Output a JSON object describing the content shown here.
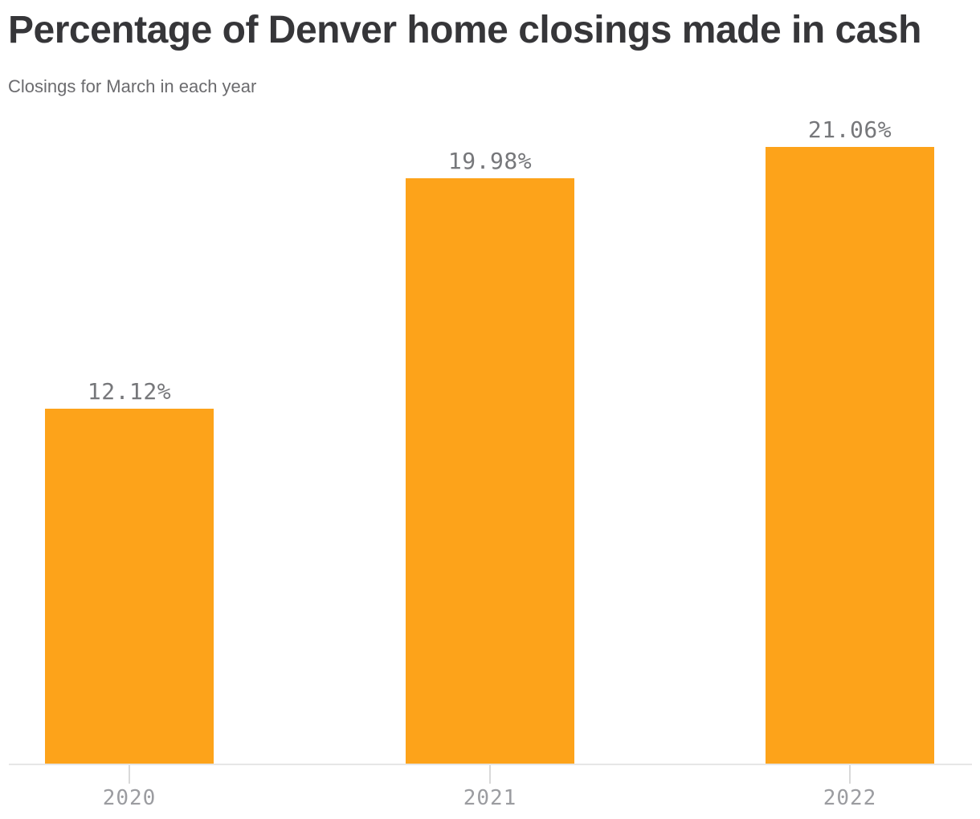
{
  "header": {
    "title": "Percentage of Denver home closings made in cash",
    "subtitle": "Closings for March in each year"
  },
  "chart_data": {
    "type": "bar",
    "title": "Percentage of Denver home closings made in cash",
    "subtitle": "Closings for March in each year",
    "categories": [
      "2020",
      "2021",
      "2022"
    ],
    "values": [
      12.12,
      19.98,
      21.06
    ],
    "value_labels": [
      "12.12%",
      "19.98%",
      "21.06%"
    ],
    "xlabel": "",
    "ylabel": "",
    "ylim": [
      0,
      21.06
    ],
    "grid": false,
    "legend": false,
    "bar_color": "#fda31a",
    "colors": {
      "title": "#363639",
      "subtitle": "#6b6b6e",
      "value_label": "#76777a",
      "tick_label": "#9b9ca0",
      "axis_line": "#e6e6e6",
      "tick_mark": "#d9d9d9",
      "background": "#ffffff"
    }
  }
}
